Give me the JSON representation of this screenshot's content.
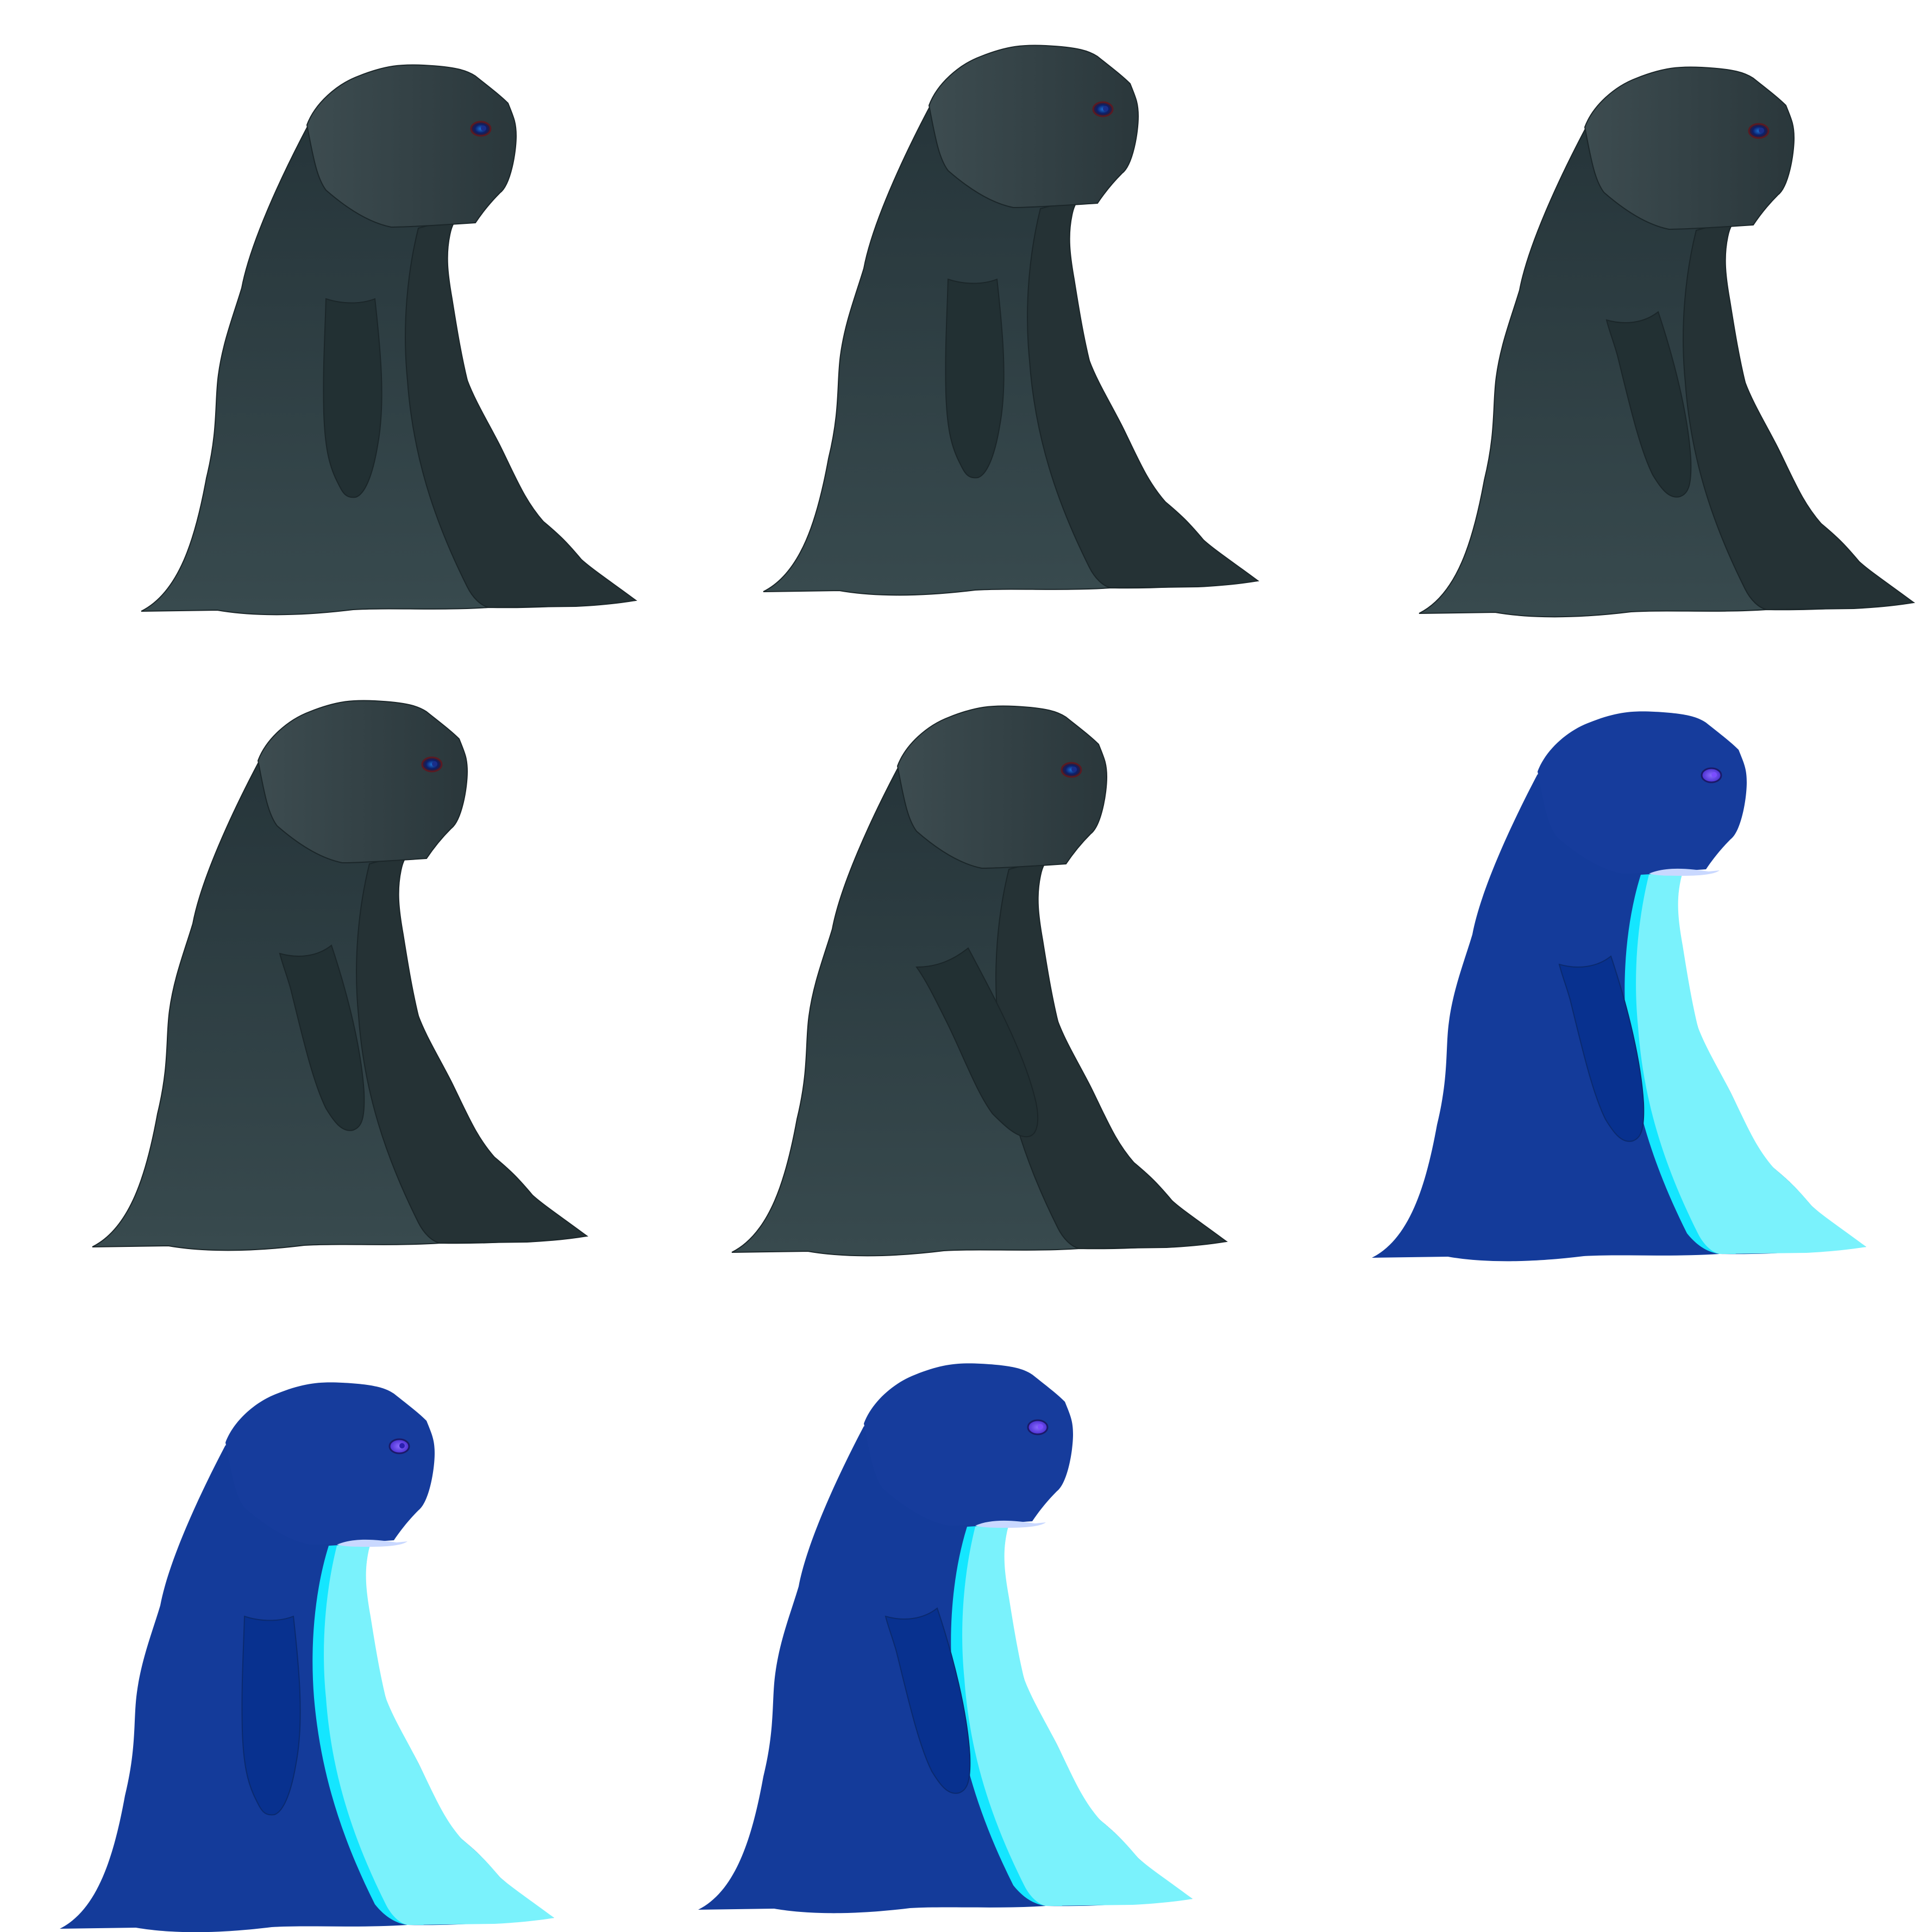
{
  "sheet": {
    "background": "#ffffff",
    "figures": [
      {
        "id": "figure-1",
        "palette": "dark",
        "eye": "#1a2e8a",
        "pose": "arm-down"
      },
      {
        "id": "figure-2",
        "palette": "dark",
        "eye": "#1a2e8a",
        "pose": "arm-down"
      },
      {
        "id": "figure-3",
        "palette": "dark",
        "eye": "#1a2e8a",
        "pose": "arm-angled"
      },
      {
        "id": "figure-4",
        "palette": "dark",
        "eye": "#1a2e8a",
        "pose": "arm-angled"
      },
      {
        "id": "figure-5",
        "palette": "dark",
        "eye": "#1a2e8a",
        "pose": "arm-forward"
      },
      {
        "id": "figure-6",
        "palette": "blue",
        "eye": "#7b4dff",
        "pose": "arm-angled"
      },
      {
        "id": "figure-7",
        "palette": "blue",
        "eye": "#2a1fb0",
        "pose": "arm-down"
      },
      {
        "id": "figure-8",
        "palette": "blue",
        "eye": "#7b4dff",
        "pose": "arm-angled"
      }
    ]
  },
  "palettes": {
    "dark": {
      "body": "#34464a",
      "body_top": "#2a383c",
      "head": "#3a494d",
      "head_shade": "#2c3a3e",
      "front": "#253235",
      "arm": "#223033",
      "edge": "#1b2629"
    },
    "blue": {
      "body": "#143b9a",
      "body_top": "#143b9a",
      "head": "#163c9c",
      "head_shade": "#143b9a",
      "front": "#7af2fc",
      "arm": "#08318f",
      "edge": "#1a78d0",
      "rim": "#14e6ff"
    }
  }
}
